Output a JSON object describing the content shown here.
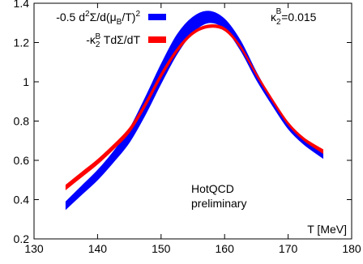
{
  "chart_data": {
    "type": "line",
    "title": "",
    "xlabel": "T [MeV]",
    "ylabel": "",
    "xlim": [
      130,
      180
    ],
    "ylim": [
      0.2,
      1.4
    ],
    "x_ticks": [
      "130",
      "140",
      "150",
      "160",
      "170",
      "180"
    ],
    "y_ticks": [
      "0.2",
      "0.4",
      "0.6",
      "0.8",
      "1",
      "1.2",
      "1.4"
    ],
    "grid": false,
    "legend_position": "top-left",
    "annotations": {
      "kappa_symbol": "κ",
      "kappa_sup": "B",
      "kappa_sub": "2",
      "kappa_value": "=0.015",
      "watermark_line1": "HotQCD",
      "watermark_line2": "preliminary"
    },
    "legend": [
      {
        "parts": [
          {
            "t": "-0.5 d",
            "s": "n"
          },
          {
            "t": "2",
            "s": "sup"
          },
          {
            "t": "Σ/d(μ",
            "s": "n"
          },
          {
            "t": "B",
            "s": "sub"
          },
          {
            "t": "/T)",
            "s": "n"
          },
          {
            "t": "2",
            "s": "sup"
          }
        ]
      },
      {
        "parts": [
          {
            "t": "-κ",
            "s": "n"
          },
          {
            "t": "2",
            "s": "sub"
          },
          {
            "t": "B",
            "s": "sup2"
          },
          {
            "t": " TdΣ/dT",
            "s": "n"
          }
        ]
      }
    ],
    "series": [
      {
        "color": "#0000ff",
        "x": [
          135,
          137.5,
          140,
          142.5,
          145,
          147.5,
          150,
          152.5,
          155,
          157.5,
          160,
          162.5,
          165,
          167.5,
          170,
          172.5,
          175.5
        ],
        "lower": [
          0.35,
          0.425,
          0.5,
          0.59,
          0.69,
          0.83,
          0.99,
          1.14,
          1.25,
          1.3,
          1.27,
          1.16,
          1.01,
          0.88,
          0.76,
          0.68,
          0.61
        ],
        "upper": [
          0.39,
          0.47,
          0.55,
          0.645,
          0.76,
          0.92,
          1.09,
          1.24,
          1.33,
          1.36,
          1.32,
          1.21,
          1.05,
          0.91,
          0.79,
          0.7,
          0.64
        ]
      },
      {
        "color": "#ff0000",
        "x": [
          135,
          137.5,
          140,
          142.5,
          145,
          147.5,
          150,
          152.5,
          155,
          157.5,
          160,
          162.5,
          165,
          167.5,
          170,
          172.5,
          175.5
        ],
        "lower": [
          0.45,
          0.515,
          0.58,
          0.655,
          0.74,
          0.87,
          1.02,
          1.15,
          1.24,
          1.275,
          1.26,
          1.17,
          1.03,
          0.9,
          0.78,
          0.7,
          0.635
        ],
        "upper": [
          0.475,
          0.54,
          0.605,
          0.68,
          0.765,
          0.895,
          1.045,
          1.17,
          1.255,
          1.29,
          1.275,
          1.185,
          1.045,
          0.915,
          0.795,
          0.715,
          0.655
        ]
      }
    ]
  }
}
